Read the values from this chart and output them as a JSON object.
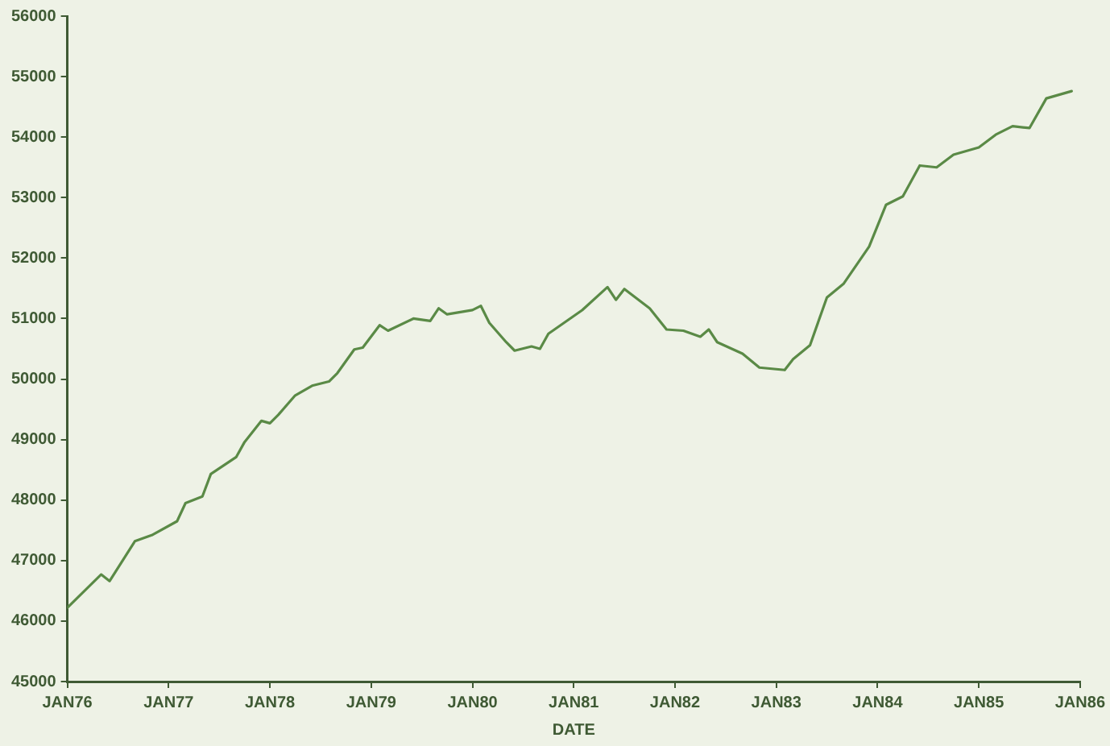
{
  "chart_data": {
    "type": "line",
    "xlabel": "DATE",
    "x": [
      "1976-01",
      "1976-05",
      "1976-06",
      "1976-09",
      "1976-11",
      "1977-02",
      "1977-03",
      "1977-05",
      "1977-06",
      "1977-09",
      "1977-10",
      "1977-12",
      "1978-01",
      "1978-02",
      "1978-04",
      "1978-06",
      "1978-08",
      "1978-09",
      "1978-11",
      "1978-12",
      "1979-02",
      "1979-03",
      "1979-06",
      "1979-08",
      "1979-09",
      "1979-10",
      "1980-01",
      "1980-02",
      "1980-03",
      "1980-05",
      "1980-06",
      "1980-08",
      "1980-09",
      "1980-10",
      "1981-02",
      "1981-05",
      "1981-06",
      "1981-07",
      "1981-10",
      "1981-12",
      "1982-02",
      "1982-04",
      "1982-05",
      "1982-06",
      "1982-09",
      "1982-11",
      "1983-02",
      "1983-03",
      "1983-05",
      "1983-07",
      "1983-09",
      "1983-12",
      "1984-02",
      "1984-04",
      "1984-06",
      "1984-08",
      "1984-10",
      "1985-01",
      "1985-03",
      "1985-05",
      "1985-07",
      "1985-09",
      "1985-12"
    ],
    "series": [
      {
        "color": "#5a8a46",
        "values": [
          46220,
          46770,
          46660,
          47320,
          47420,
          47650,
          47950,
          48060,
          48430,
          48710,
          48960,
          49310,
          49270,
          49410,
          49730,
          49890,
          49960,
          50100,
          50490,
          50520,
          50890,
          50800,
          51000,
          50960,
          51170,
          51070,
          51140,
          51210,
          50930,
          50610,
          50470,
          50540,
          50500,
          50750,
          51140,
          51520,
          51310,
          51490,
          51170,
          50820,
          50800,
          50700,
          50820,
          50610,
          50420,
          50190,
          50150,
          50330,
          50560,
          51350,
          51580,
          52190,
          52880,
          53020,
          53530,
          53500,
          53710,
          53830,
          54040,
          54180,
          54150,
          54640,
          54760
        ]
      }
    ],
    "xlim": [
      "1976-01",
      "1986-01"
    ],
    "xticks": [
      {
        "value": "1976-01",
        "label": "JAN76"
      },
      {
        "value": "1977-01",
        "label": "JAN77"
      },
      {
        "value": "1978-01",
        "label": "JAN78"
      },
      {
        "value": "1979-01",
        "label": "JAN79"
      },
      {
        "value": "1980-01",
        "label": "JAN80"
      },
      {
        "value": "1981-01",
        "label": "JAN81"
      },
      {
        "value": "1982-01",
        "label": "JAN82"
      },
      {
        "value": "1983-01",
        "label": "JAN83"
      },
      {
        "value": "1984-01",
        "label": "JAN84"
      },
      {
        "value": "1985-01",
        "label": "JAN85"
      },
      {
        "value": "1986-01",
        "label": "JAN86"
      }
    ],
    "ylim": [
      45000,
      56000
    ],
    "yticks": [
      45000,
      46000,
      47000,
      48000,
      49000,
      50000,
      51000,
      52000,
      53000,
      54000,
      55000,
      56000
    ],
    "grid": false,
    "legend": false,
    "marker": "none",
    "line_style": "solid"
  }
}
